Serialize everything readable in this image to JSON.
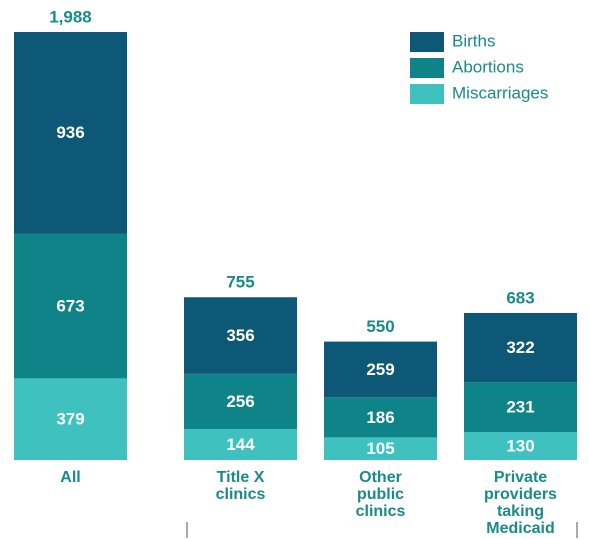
{
  "chart_data": {
    "type": "stacked-bar",
    "categories": [
      [
        "All"
      ],
      [
        "Title X",
        "clinics"
      ],
      [
        "Other",
        "public",
        "clinics"
      ],
      [
        "Private",
        "providers",
        "taking",
        "Medicaid"
      ]
    ],
    "series": [
      {
        "name": "Miscarriages",
        "color": "#3fc1c0",
        "values": [
          379,
          144,
          105,
          130
        ]
      },
      {
        "name": "Abortions",
        "color": "#0e8388",
        "values": [
          673,
          256,
          186,
          231
        ]
      },
      {
        "name": "Births",
        "color": "#0d5876",
        "values": [
          936,
          356,
          259,
          322
        ]
      }
    ],
    "totals": [
      {
        "value": 1988,
        "label": "1,988"
      },
      755,
      550,
      683
    ]
  }
}
